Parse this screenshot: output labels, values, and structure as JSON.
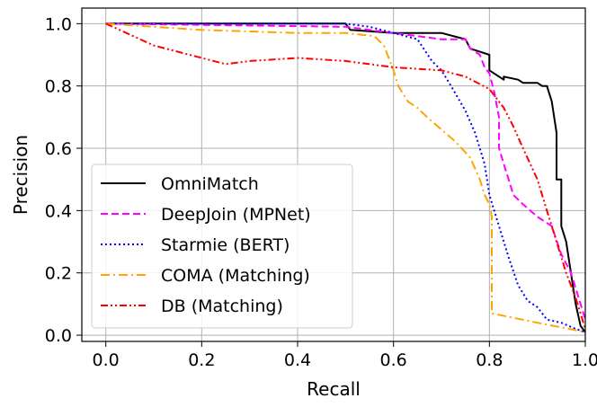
{
  "chart_data": {
    "type": "line",
    "title": "",
    "xlabel": "Recall",
    "ylabel": "Precision",
    "xlim": [
      -0.05,
      1.0
    ],
    "ylim": [
      -0.02,
      1.05
    ],
    "xticks": [
      0.0,
      0.2,
      0.4,
      0.6,
      0.8,
      1.0
    ],
    "yticks": [
      0.0,
      0.2,
      0.4,
      0.6,
      0.8,
      1.0
    ],
    "xtick_labels": [
      "0.0",
      "0.2",
      "0.4",
      "0.6",
      "0.8",
      "1.0"
    ],
    "ytick_labels": [
      "0.0",
      "0.2",
      "0.4",
      "0.6",
      "0.8",
      "1.0"
    ],
    "grid": true,
    "legend_position": "lower-left",
    "series": [
      {
        "name": "OmniMatch",
        "color": "#000000",
        "dash": "solid",
        "x": [
          0.0,
          0.5,
          0.51,
          0.6,
          0.7,
          0.75,
          0.76,
          0.8,
          0.8,
          0.83,
          0.83,
          0.86,
          0.87,
          0.9,
          0.91,
          0.92,
          0.93,
          0.94,
          0.94,
          0.95,
          0.95,
          0.96,
          0.97,
          0.98,
          0.99,
          1.0
        ],
        "y": [
          1.0,
          1.0,
          0.98,
          0.97,
          0.97,
          0.95,
          0.92,
          0.9,
          0.85,
          0.82,
          0.83,
          0.82,
          0.81,
          0.81,
          0.8,
          0.8,
          0.75,
          0.65,
          0.5,
          0.5,
          0.35,
          0.3,
          0.2,
          0.1,
          0.03,
          0.01
        ]
      },
      {
        "name": "DeepJoin (MPNet)",
        "color": "#ff00ff",
        "dash": "dashed",
        "x": [
          0.0,
          0.5,
          0.6,
          0.7,
          0.75,
          0.76,
          0.78,
          0.79,
          0.8,
          0.81,
          0.82,
          0.82,
          0.83,
          0.84,
          0.85,
          0.87,
          0.9,
          0.93,
          0.95,
          0.97,
          0.99,
          1.0
        ],
        "y": [
          1.0,
          0.99,
          0.97,
          0.95,
          0.95,
          0.92,
          0.9,
          0.86,
          0.84,
          0.78,
          0.7,
          0.6,
          0.55,
          0.5,
          0.45,
          0.42,
          0.38,
          0.35,
          0.26,
          0.2,
          0.1,
          0.05
        ]
      },
      {
        "name": "Starmie (BERT)",
        "color": "#0000ff",
        "dash": "dotted",
        "x": [
          0.0,
          0.5,
          0.55,
          0.6,
          0.65,
          0.68,
          0.7,
          0.72,
          0.75,
          0.77,
          0.79,
          0.8,
          0.82,
          0.84,
          0.86,
          0.88,
          0.9,
          0.92,
          0.95,
          0.98,
          1.0
        ],
        "y": [
          1.0,
          1.0,
          0.99,
          0.97,
          0.95,
          0.88,
          0.85,
          0.8,
          0.72,
          0.65,
          0.55,
          0.45,
          0.35,
          0.25,
          0.16,
          0.11,
          0.09,
          0.05,
          0.04,
          0.02,
          0.01
        ]
      },
      {
        "name": "COMA (Matching)",
        "color": "#ffa500",
        "dash": "dashdot",
        "x": [
          0.0,
          0.2,
          0.4,
          0.5,
          0.56,
          0.58,
          0.6,
          0.61,
          0.63,
          0.65,
          0.67,
          0.7,
          0.73,
          0.76,
          0.78,
          0.79,
          0.8,
          0.805,
          0.805,
          0.9,
          1.0
        ],
        "y": [
          1.0,
          0.98,
          0.97,
          0.97,
          0.96,
          0.93,
          0.85,
          0.8,
          0.75,
          0.73,
          0.7,
          0.66,
          0.62,
          0.57,
          0.5,
          0.45,
          0.42,
          0.38,
          0.07,
          0.04,
          0.01
        ]
      },
      {
        "name": "DB (Matching)",
        "color": "#ff0000",
        "dash": "dashdotdot",
        "x": [
          0.0,
          0.1,
          0.2,
          0.25,
          0.3,
          0.4,
          0.5,
          0.6,
          0.7,
          0.75,
          0.8,
          0.83,
          0.85,
          0.87,
          0.9,
          0.92,
          0.94,
          0.96,
          0.98,
          1.0
        ],
        "y": [
          1.0,
          0.93,
          0.89,
          0.87,
          0.88,
          0.89,
          0.88,
          0.86,
          0.85,
          0.83,
          0.79,
          0.73,
          0.67,
          0.6,
          0.5,
          0.4,
          0.3,
          0.2,
          0.12,
          0.02
        ]
      }
    ]
  }
}
